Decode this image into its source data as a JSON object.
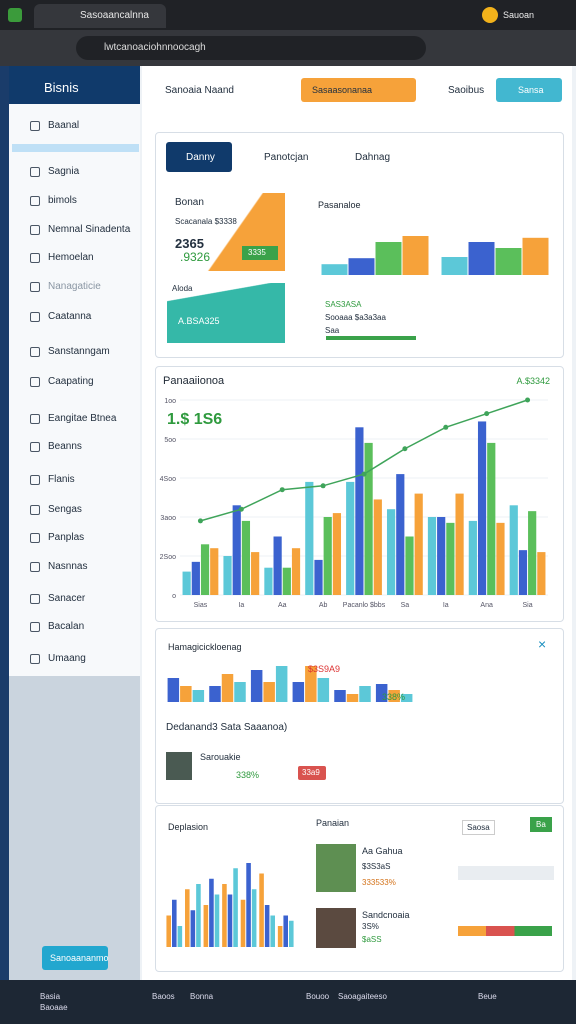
{
  "browser": {
    "tab_title": "Sasoaancalnna",
    "url": "lwtcanoaciohnnoocagh",
    "profile": "Sauoan"
  },
  "sidebar": {
    "title": "Bisnis",
    "items": [
      "Baanal",
      "Sagnia",
      "bimols",
      "Nemnal Sinadenta",
      "Hemoelan",
      "Nanagaticie",
      "Caatanna",
      "Sanstanngam",
      "Caapating",
      "Eangitae Btnea",
      "Beanns",
      "Flanis",
      "Sengas",
      "Panplas",
      "Nasnnas",
      "Sanacer",
      "Bacalan",
      "Umaang"
    ],
    "footer_button": "Sanoaananmo"
  },
  "topbar": {
    "title": "Sanoaia Naand",
    "primary_button": "Sasaasonanaa",
    "status": "Saoibus",
    "secondary_button": "Sansa"
  },
  "overview": {
    "tabs": [
      "Danny",
      "Panotcjan",
      "Dahnag"
    ],
    "card_title": "Bonan",
    "card_subtitle": "Scacanala $3338",
    "big_value": "2365",
    "delta": ".9326",
    "badge": "3335",
    "teal_title": "Aloda",
    "teal_value": "A.BSA325",
    "legend": [
      "SAS3ASA",
      "Sooaaa $a3a3aa",
      "Saa"
    ]
  },
  "reports": {
    "subtitle": "Dedanand3 Sata Saaanoa)",
    "person": "Sarouakie",
    "rating": "338%",
    "tag": "33a9",
    "mini_values": [
      "$3S9A9",
      "338%"
    ]
  },
  "lists": {
    "filter": "Saosa",
    "action": "Ba",
    "items": [
      {
        "name": "Aa Gahua",
        "amount": "$3S3aS",
        "change": "333533%"
      },
      {
        "name": "Sandcnoaia",
        "amount": "$aSS",
        "change": "3S%"
      }
    ]
  },
  "taskbar": [
    "Basia",
    "Baoaae",
    "Baoos",
    "Bonna",
    "Bouoo",
    "Saoagaiteeso",
    "Beue"
  ],
  "chart_data": [
    {
      "type": "bar",
      "title": "Panaaiionoa",
      "annotation": "A.$3342",
      "subtitle": "1.$ 1S6",
      "categories": [
        "Sias",
        "Ia",
        "Aa",
        "Ab",
        "Pacanlo $bbs",
        "Sa",
        "Ia",
        "Ana",
        "Sia"
      ],
      "ylim": [
        0,
        100
      ],
      "yticks": [
        {
          "value": 0,
          "label": "o"
        },
        {
          "value": 20,
          "label": "2Soo"
        },
        {
          "value": 40,
          "label": "3aoo"
        },
        {
          "value": 60,
          "label": "4Soo"
        },
        {
          "value": 80,
          "label": "5oo"
        },
        {
          "value": 100,
          "label": "1oo"
        }
      ],
      "series": [
        {
          "color": "#5cc8d8",
          "values": [
            12,
            20,
            14,
            58,
            58,
            44,
            40,
            38,
            46
          ]
        },
        {
          "color": "#3b62cf",
          "values": [
            17,
            46,
            30,
            18,
            86,
            62,
            40,
            89,
            23
          ]
        },
        {
          "color": "#5bbf5b",
          "values": [
            26,
            38,
            14,
            40,
            78,
            30,
            37,
            78,
            43
          ]
        },
        {
          "color": "#f6a23a",
          "values": [
            24,
            22,
            24,
            42,
            49,
            52,
            52,
            37,
            22
          ]
        },
        {
          "type": "line",
          "color": "#3fa45a",
          "values": [
            38,
            44,
            54,
            56,
            62,
            75,
            86,
            93,
            100
          ]
        }
      ]
    },
    {
      "type": "bar",
      "title": "Pasanaloe",
      "categories": [
        null,
        null
      ],
      "ylim": [
        0,
        100
      ],
      "series": [
        {
          "color": "#5cc8d8",
          "values": [
            18,
            30
          ]
        },
        {
          "color": "#3b62cf",
          "values": [
            28,
            55
          ]
        },
        {
          "color": "#5bbf5b",
          "values": [
            55,
            45
          ]
        },
        {
          "color": "#f6a23a",
          "values": [
            65,
            62
          ]
        }
      ]
    },
    {
      "type": "bar",
      "title": "Hamagicickloenag",
      "categories": [
        null,
        null,
        null,
        null,
        null,
        null
      ],
      "ylim": [
        0,
        100
      ],
      "series": [
        {
          "color": "#3b62cf",
          "values": [
            60,
            40,
            80,
            50,
            30,
            45
          ]
        },
        {
          "color": "#f6a23a",
          "values": [
            40,
            70,
            50,
            90,
            20,
            30
          ]
        },
        {
          "color": "#5cc8d8",
          "values": [
            30,
            50,
            90,
            60,
            40,
            20
          ]
        }
      ]
    },
    {
      "type": "bar",
      "title": "Deplasion",
      "categories": [
        null,
        null,
        null,
        null,
        null,
        null,
        null
      ],
      "ylim": [
        0,
        100
      ],
      "series": [
        {
          "color": "#f6a23a",
          "values": [
            30,
            55,
            40,
            60,
            45,
            70,
            20
          ]
        },
        {
          "color": "#3b62cf",
          "values": [
            45,
            35,
            65,
            50,
            80,
            40,
            30
          ]
        },
        {
          "color": "#5cc8d8",
          "values": [
            20,
            60,
            50,
            75,
            55,
            30,
            25
          ]
        }
      ]
    }
  ]
}
